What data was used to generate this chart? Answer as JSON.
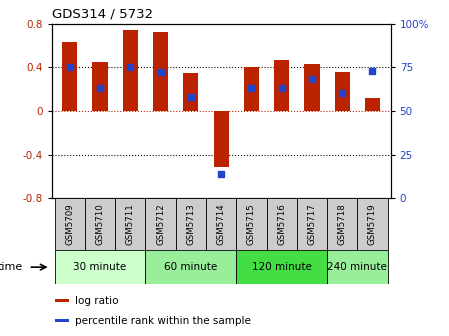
{
  "title": "GDS314 / 5732",
  "samples": [
    "GSM5709",
    "GSM5710",
    "GSM5711",
    "GSM5712",
    "GSM5713",
    "GSM5714",
    "GSM5715",
    "GSM5716",
    "GSM5717",
    "GSM5718",
    "GSM5719"
  ],
  "log_ratio": [
    0.63,
    0.45,
    0.74,
    0.72,
    0.35,
    -0.51,
    0.4,
    0.47,
    0.43,
    0.36,
    0.12
  ],
  "percentile": [
    75,
    63,
    75,
    72,
    58,
    14,
    63,
    63,
    68,
    60,
    73
  ],
  "bar_color": "#bb2200",
  "dot_color": "#2244cc",
  "ylim_left": [
    -0.8,
    0.8
  ],
  "ylim_right": [
    0,
    100
  ],
  "yticks_left": [
    -0.8,
    -0.4,
    0,
    0.4,
    0.8
  ],
  "yticks_right": [
    0,
    25,
    50,
    75,
    100
  ],
  "ytick_labels_right": [
    "0",
    "25",
    "50",
    "75",
    "100%"
  ],
  "hlines_black": [
    -0.4,
    0.4
  ],
  "hline_red": 0,
  "time_groups": [
    {
      "label": "30 minute",
      "start": 0,
      "end": 3,
      "color": "#ccffcc"
    },
    {
      "label": "60 minute",
      "start": 3,
      "end": 6,
      "color": "#99ee99"
    },
    {
      "label": "120 minute",
      "start": 6,
      "end": 9,
      "color": "#44dd44"
    },
    {
      "label": "240 minute",
      "start": 9,
      "end": 11,
      "color": "#99ee99"
    }
  ],
  "legend_items": [
    {
      "label": "log ratio",
      "color": "#bb2200"
    },
    {
      "label": "percentile rank within the sample",
      "color": "#2244cc"
    }
  ],
  "time_label": "time",
  "background_color": "#ffffff",
  "bar_width": 0.5
}
